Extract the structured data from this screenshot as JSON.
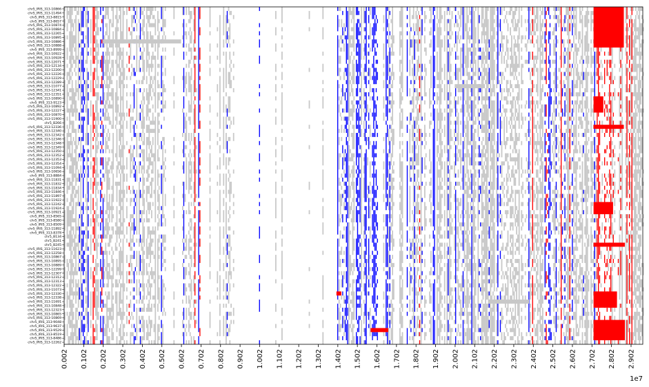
{
  "chart_data": {
    "type": "heatmap",
    "title": "",
    "xlabel": "",
    "ylabel": "",
    "x_offset_label": "1e7",
    "x_ticks": [
      "0.002",
      "0.102",
      "0.202",
      "0.302",
      "0.402",
      "0.502",
      "0.602",
      "0.702",
      "0.802",
      "0.902",
      "1.002",
      "1.102",
      "1.202",
      "1.302",
      "1.402",
      "1.502",
      "1.602",
      "1.702",
      "1.802",
      "1.902",
      "2.002",
      "2.102",
      "2.202",
      "2.302",
      "2.402",
      "2.502",
      "2.602",
      "2.702",
      "2.802",
      "2.902"
    ],
    "xlim": [
      0.002,
      2.962
    ],
    "colors": {
      "background": "#ffffff",
      "gray": "#c8c8c8",
      "blue": "#0000ff",
      "red": "#ff0000"
    },
    "grid": false,
    "legend": "none",
    "row_labels": [
      "chr5_IRIS_313-10866",
      "chr5_IRIS_313-11494",
      "chr5_IRIS_313-8815",
      "chr5_IRIS_313-8657",
      "chr5_IRIS_313-10874",
      "chr5_IRIS_313-10884",
      "chr5_IRIS_313-12265",
      "chr5_IRIS_313-10895",
      "chr5_IRIS_313-10886",
      "chr5_IRIS_313-10888",
      "chr5_IRIS_313-8999",
      "chr5_IRIS_313-10922",
      "chr5_IRIS_313-10928",
      "chr5_IRIS_313-12071",
      "chr5_IRIS_313-12134",
      "chr5_IRIS_313-12200",
      "chr5_IRIS_313-12226",
      "chr5_IRIS_313-12229",
      "chr5_IRIS_313-12289",
      "chr5_IRIS_313-11077",
      "chr5_IRIS_313-12341",
      "chr5_IRIS_313-12351",
      "chr5_IRIS_313-10890",
      "chr5_IRIS_313-9123",
      "chr5_IRIS_313-10892",
      "chr5_IRIS_313-12227",
      "chr5_IRIS_313-10870",
      "chr5_IRIS_313-11900",
      "chr5_B266",
      "chr5_IRIS_313-12336",
      "chr5_IRIS_313-12340",
      "chr5_IRIS_313-12342",
      "chr5_IRIS_313-12346",
      "chr5_IRIS_313-12348",
      "chr5_IRIS_313-12349",
      "chr5_IRIS_313-12350",
      "chr5_IRIS_313-12352",
      "chr5_IRIS_313-12353",
      "chr5_IRIS_313-12354",
      "chr5_IRIS_313-11094",
      "chr5_IRIS_313-10656",
      "chr5_IRIS_313-8884",
      "chr5_IRIS_313-11831",
      "chr5_IRIS_313-11832",
      "chr5_IRIS_313-11834",
      "chr5_IRIS_313-11846",
      "chr5_IRIS_313-11897",
      "chr5_IRIS_313-11922",
      "chr5_IRIS_313-12242",
      "chr5_IRIS_313-11924",
      "chr5_IRIS_313-10921",
      "chr5_IRIS_313-8565",
      "chr5_IRIS_313-8580",
      "chr5_IRIS_313-8509",
      "chr5_IRIS_313-11892",
      "chr5_IRIS_313-8378",
      "chr5_B134",
      "chr5_B241",
      "chr5_B245",
      "chr5_IRIS_313-11623",
      "chr5_IRIS_313-12258",
      "chr5_IRIS_313-10867",
      "chr5_IRIS_313-10895",
      "chr5_IRIS_313-10889",
      "chr5_IRIS_313-12299",
      "chr5_IRIS_313-12307",
      "chr5_IRIS_313-12312",
      "chr5_IRIS_313-12313",
      "chr5_IRIS_313-12322",
      "chr5_IRIS_313-11073",
      "chr5_IRIS_313-12330",
      "chr5_IRIS_313-12338",
      "chr5_IRIS_313-11691",
      "chr5_IRIS_313-10848",
      "chr5_IRIS_313-12323",
      "chr5_IRIS_313-10865",
      "chr5_IRIS_313-10869",
      "chr5_IRIS_313-9048",
      "chr5_IRIS_313-9637",
      "chr5_IRIS_313-9529",
      "chr5_IRIS_313-8519",
      "chr5_IRIS_313-8486",
      "chr5_IRIS_313-12262"
    ],
    "column_profile": [
      {
        "range": [
          0.002,
          0.08
        ],
        "blue": 0.0,
        "red": 0.0,
        "gray": 0.95
      },
      {
        "range": [
          0.08,
          0.11
        ],
        "blue": 0.45,
        "red": 0.05,
        "gray": 0.45
      },
      {
        "range": [
          0.11,
          0.15
        ],
        "blue": 0.25,
        "red": 0.02,
        "gray": 0.55
      },
      {
        "range": [
          0.15,
          0.2
        ],
        "blue": 0.08,
        "red": 0.08,
        "gray": 0.7
      },
      {
        "range": [
          0.2,
          0.24
        ],
        "blue": 0.1,
        "red": 0.05,
        "gray": 0.75
      },
      {
        "range": [
          0.24,
          0.3
        ],
        "blue": 0.05,
        "red": 0.05,
        "gray": 0.7
      },
      {
        "range": [
          0.3,
          0.34
        ],
        "blue": 0.2,
        "red": 0.05,
        "gray": 0.55
      },
      {
        "range": [
          0.34,
          0.39
        ],
        "blue": 0.55,
        "red": 0.05,
        "gray": 0.3
      },
      {
        "range": [
          0.39,
          0.42
        ],
        "blue": 0.3,
        "red": 0.1,
        "gray": 0.45
      },
      {
        "range": [
          0.42,
          0.52
        ],
        "blue": 0.02,
        "red": 0.02,
        "gray": 0.75
      },
      {
        "range": [
          0.52,
          0.56
        ],
        "blue": 0.02,
        "red": 0.04,
        "gray": 0.25
      },
      {
        "range": [
          0.56,
          0.66
        ],
        "blue": 0.05,
        "red": 0.05,
        "gray": 0.4
      },
      {
        "range": [
          0.66,
          0.72
        ],
        "blue": 0.25,
        "red": 0.15,
        "gray": 0.45
      },
      {
        "range": [
          0.72,
          0.82
        ],
        "blue": 0.05,
        "red": 0.02,
        "gray": 0.35
      },
      {
        "range": [
          0.82,
          0.86
        ],
        "blue": 0.1,
        "red": 0.0,
        "gray": 0.4
      },
      {
        "range": [
          0.86,
          1.4
        ],
        "blue": 0.03,
        "red": 0.0,
        "gray": 0.04
      },
      {
        "range": [
          1.4,
          1.5
        ],
        "blue": 0.35,
        "red": 0.02,
        "gray": 0.55
      },
      {
        "range": [
          1.5,
          1.66
        ],
        "blue": 0.35,
        "red": 0.02,
        "gray": 0.4
      },
      {
        "range": [
          1.66,
          1.75
        ],
        "blue": 0.1,
        "red": 0.02,
        "gray": 0.5
      },
      {
        "range": [
          1.75,
          1.96
        ],
        "blue": 0.25,
        "red": 0.04,
        "gray": 0.45
      },
      {
        "range": [
          1.96,
          2.16
        ],
        "blue": 0.2,
        "red": 0.03,
        "gray": 0.65
      },
      {
        "range": [
          2.16,
          2.48
        ],
        "blue": 0.1,
        "red": 0.03,
        "gray": 0.75
      },
      {
        "range": [
          2.48,
          2.62
        ],
        "blue": 0.25,
        "red": 0.03,
        "gray": 0.7
      },
      {
        "range": [
          2.62,
          2.71
        ],
        "blue": 0.05,
        "red": 0.02,
        "gray": 0.85
      },
      {
        "range": [
          2.71,
          2.87
        ],
        "blue": 0.02,
        "red": 0.45,
        "gray": 0.35
      },
      {
        "range": [
          2.87,
          2.96
        ],
        "blue": 0.05,
        "red": 0.1,
        "gray": 0.8
      }
    ],
    "highlight_blocks": [
      {
        "color": "red",
        "x_range": [
          2.71,
          2.865
        ],
        "rows": [
          0,
          9
        ]
      },
      {
        "color": "red",
        "x_range": [
          2.71,
          2.76
        ],
        "rows": [
          22,
          25
        ]
      },
      {
        "color": "red",
        "x_range": [
          2.71,
          2.865
        ],
        "rows": [
          29,
          29
        ]
      },
      {
        "color": "red",
        "x_range": [
          2.71,
          2.81
        ],
        "rows": [
          48,
          50
        ]
      },
      {
        "color": "red",
        "x_range": [
          2.71,
          2.87
        ],
        "rows": [
          58,
          58
        ]
      },
      {
        "color": "red",
        "x_range": [
          2.71,
          2.83
        ],
        "rows": [
          70,
          73
        ]
      },
      {
        "color": "red",
        "x_range": [
          2.71,
          2.87
        ],
        "rows": [
          77,
          81
        ]
      },
      {
        "color": "red",
        "x_range": [
          1.57,
          1.66
        ],
        "rows": [
          79,
          79
        ]
      },
      {
        "color": "red",
        "x_range": [
          1.395,
          1.42
        ],
        "rows": [
          70,
          70
        ]
      },
      {
        "color": "gray",
        "x_range": [
          0.2,
          0.6
        ],
        "rows": [
          8,
          8
        ]
      },
      {
        "color": "gray",
        "x_range": [
          2.0,
          2.15
        ],
        "rows": [
          19,
          19
        ]
      },
      {
        "color": "gray",
        "x_range": [
          2.17,
          2.38
        ],
        "rows": [
          72,
          72
        ]
      }
    ]
  }
}
